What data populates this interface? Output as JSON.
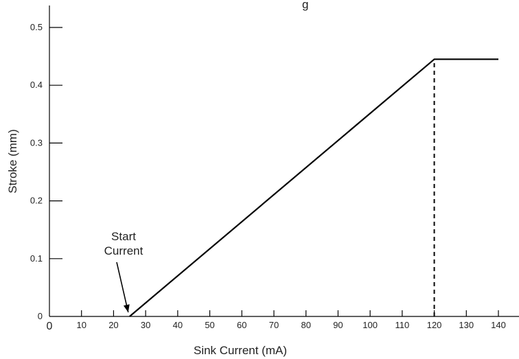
{
  "chart_data": {
    "type": "line",
    "title_partial": "g",
    "xlabel": "Sink Current (mA)",
    "ylabel": "Stroke (mm)",
    "xlim": [
      0,
      140
    ],
    "ylim": [
      0,
      0.5
    ],
    "x_ticks": [
      0,
      10,
      20,
      30,
      40,
      50,
      60,
      70,
      80,
      90,
      100,
      110,
      120,
      130,
      140
    ],
    "y_ticks": [
      0,
      0.1,
      0.2,
      0.3,
      0.4,
      0.5
    ],
    "x_tick_labels": [
      "0",
      "10",
      "20",
      "30",
      "40",
      "50",
      "60",
      "70",
      "80",
      "90",
      "100",
      "110",
      "120",
      "130",
      "140"
    ],
    "y_tick_labels": [
      "0",
      "0.1",
      "0.2",
      "0.3",
      "0.4",
      "0.5"
    ],
    "grid": false,
    "series": [
      {
        "x": [
          25,
          120,
          140
        ],
        "y": [
          0,
          0.445,
          0.445
        ],
        "color": "#000000"
      }
    ],
    "reference_lines": [
      {
        "x": 120,
        "y_from": 0,
        "y_to": 0.445,
        "style": "dashed"
      }
    ],
    "annotations": [
      {
        "lines": [
          "Start",
          "Current"
        ],
        "points_to": {
          "x": 25,
          "y": 0
        }
      }
    ]
  }
}
